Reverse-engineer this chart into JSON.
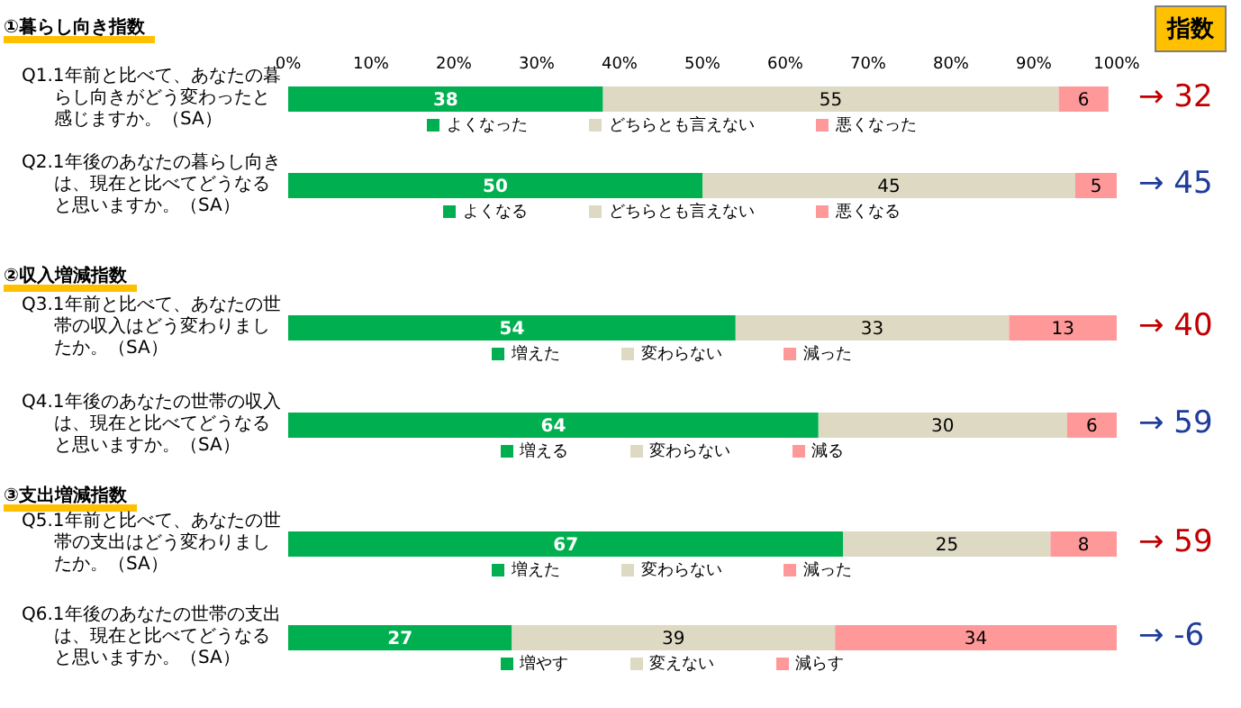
{
  "chart_data": [
    {
      "type": "bar",
      "orientation": "horizontal",
      "stacked": true,
      "title": "①暮らし向き指数",
      "categories": [
        "Q1.1年前と比べて、あなたの暮らし向きがどう変わったと感じますか。（SA）"
      ],
      "xlim": [
        0,
        100
      ],
      "xticks": [
        {
          "value": 0,
          "label": "0%"
        },
        {
          "value": 10,
          "label": "10%"
        },
        {
          "value": 20,
          "label": "20%"
        },
        {
          "value": 30,
          "label": "30%"
        },
        {
          "value": 40,
          "label": "40%"
        },
        {
          "value": 50,
          "label": "50%"
        },
        {
          "value": 60,
          "label": "60%"
        },
        {
          "value": 70,
          "label": "70%"
        },
        {
          "value": 80,
          "label": "80%"
        },
        {
          "value": 90,
          "label": "90%"
        },
        {
          "value": 100,
          "label": "100%"
        }
      ],
      "data_labels": true,
      "legend": "bottom",
      "grid": false,
      "annotations": [
        "→ 32",
        "指数"
      ],
      "series": [
        {
          "name": "よくなった",
          "color": "#00b050",
          "values": [
            38
          ]
        },
        {
          "name": "どちらとも言えない",
          "color": "#ddd9c3",
          "values": [
            55
          ]
        },
        {
          "name": "悪くなった",
          "color": "#ff9999",
          "values": [
            6
          ]
        }
      ]
    },
    {
      "type": "bar",
      "orientation": "horizontal",
      "stacked": true,
      "categories": [
        "Q2.1年後のあなたの暮らし向きは、現在と比べてどうなると思いますか。（SA）"
      ],
      "xlim": [
        0,
        100
      ],
      "tick_labels": "y",
      "data_labels": true,
      "legend": "bottom",
      "grid": false,
      "annotations": [
        "→ 45"
      ],
      "series": [
        {
          "name": "よくなる",
          "color": "#00b050",
          "values": [
            50
          ]
        },
        {
          "name": "どちらとも言えない",
          "color": "#ddd9c3",
          "values": [
            45
          ]
        },
        {
          "name": "悪くなる",
          "color": "#ff9999",
          "values": [
            5
          ]
        }
      ]
    },
    {
      "type": "bar",
      "orientation": "horizontal",
      "stacked": true,
      "title": "②収入増減指数",
      "categories": [
        "Q3.1年前と比べて、あなたの世帯の収入はどう変わりましたか。（SA）"
      ],
      "xlim": [
        0,
        100
      ],
      "tick_labels": "y",
      "data_labels": true,
      "legend": "bottom",
      "grid": false,
      "annotations": [
        "→ 40"
      ],
      "series": [
        {
          "name": "増えた",
          "color": "#00b050",
          "values": [
            54
          ]
        },
        {
          "name": "変わらない",
          "color": "#ddd9c3",
          "values": [
            33
          ]
        },
        {
          "name": "減った",
          "color": "#ff9999",
          "values": [
            13
          ]
        }
      ]
    },
    {
      "type": "bar",
      "orientation": "horizontal",
      "stacked": true,
      "categories": [
        "Q4.1年後のあなたの世帯の収入は、現在と比べてどうなると思いますか。（SA）"
      ],
      "xlim": [
        0,
        100
      ],
      "tick_labels": "y",
      "data_labels": true,
      "legend": "bottom",
      "grid": false,
      "annotations": [
        "→ 59"
      ],
      "series": [
        {
          "name": "増える",
          "color": "#00b050",
          "values": [
            64
          ]
        },
        {
          "name": "変わらない",
          "color": "#ddd9c3",
          "values": [
            30
          ]
        },
        {
          "name": "減る",
          "color": "#ff9999",
          "values": [
            6
          ]
        }
      ]
    },
    {
      "type": "bar",
      "orientation": "horizontal",
      "stacked": true,
      "title": "③支出増減指数",
      "categories": [
        "Q5.1年前と比べて、あなたの世帯の支出はどう変わりましたか。（SA）"
      ],
      "xlim": [
        0,
        100
      ],
      "tick_labels": "y",
      "data_labels": true,
      "legend": "bottom",
      "grid": false,
      "annotations": [
        "→ 59"
      ],
      "series": [
        {
          "name": "増えた",
          "color": "#00b050",
          "values": [
            67
          ]
        },
        {
          "name": "変わらない",
          "color": "#ddd9c3",
          "values": [
            25
          ]
        },
        {
          "name": "減った",
          "color": "#ff9999",
          "values": [
            8
          ]
        }
      ]
    },
    {
      "type": "bar",
      "orientation": "horizontal",
      "stacked": true,
      "categories": [
        "Q6.1年後のあなたの世帯の支出は、現在と比べてどうなると思いますか。（SA）"
      ],
      "xlim": [
        0,
        100
      ],
      "tick_labels": "y",
      "data_labels": true,
      "legend": "bottom",
      "grid": false,
      "annotations": [
        "→ -6"
      ],
      "series": [
        {
          "name": "増やす",
          "color": "#00b050",
          "values": [
            27
          ]
        },
        {
          "name": "変えない",
          "color": "#ddd9c3",
          "values": [
            39
          ]
        },
        {
          "name": "減らす",
          "color": "#ff9999",
          "values": [
            34
          ]
        }
      ]
    }
  ]
}
